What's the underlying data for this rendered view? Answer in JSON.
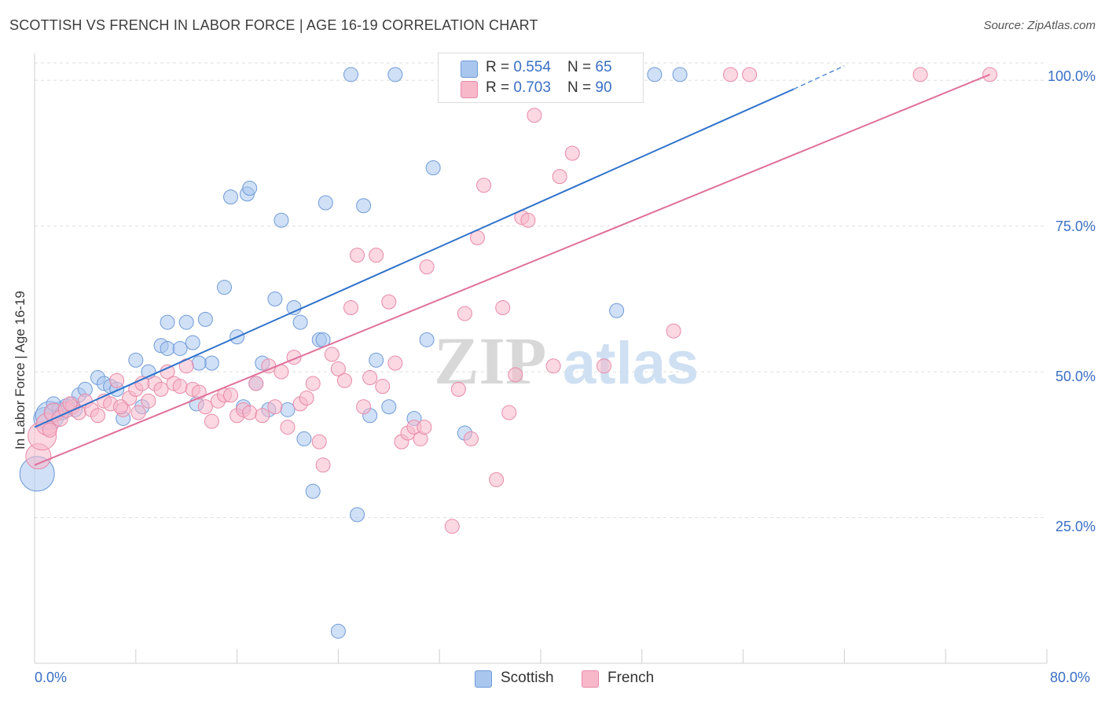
{
  "header": {
    "title": "SCOTTISH VS FRENCH IN LABOR FORCE | AGE 16-19 CORRELATION CHART",
    "source": "Source: ZipAtlas.com"
  },
  "legend": {
    "rows": [
      {
        "r_label": "R = ",
        "r_value": "0.554",
        "n_label": "N = ",
        "n_value": "65"
      },
      {
        "r_label": "R = ",
        "r_value": "0.703",
        "n_label": "N = ",
        "n_value": "90"
      }
    ],
    "items": [
      {
        "label": "Scottish"
      },
      {
        "label": "French"
      }
    ]
  },
  "colors": {
    "scottish_fill": "#a9c6ef",
    "scottish_stroke": "#6f9bd8",
    "scottish_line": "#2f72cc",
    "french_fill": "#f7b8ca",
    "french_stroke": "#e88aa8",
    "french_line": "#e0709a",
    "tick_text": "#3a6fc4",
    "grid": "#dddddd"
  },
  "chart_data": {
    "type": "scatter",
    "title": "SCOTTISH VS FRENCH IN LABOR FORCE | AGE 16-19 CORRELATION CHART",
    "xlabel": "",
    "ylabel": "In Labor Force | Age 16-19",
    "xlim": [
      0,
      80
    ],
    "ylim": [
      0,
      103
    ],
    "x_tick_labels": [
      "0.0%",
      "80.0%"
    ],
    "y_tick_labels": [
      "25.0%",
      "50.0%",
      "75.0%",
      "100.0%"
    ],
    "y_ticks": [
      25,
      50,
      75,
      100
    ],
    "watermark": {
      "part1": "ZIP",
      "part2": "atlas"
    },
    "series": [
      {
        "name": "Scottish",
        "r": 0.554,
        "n": 65,
        "trend": {
          "x0": 0,
          "y0": 40.5,
          "x1": 60,
          "y1": 98.5,
          "dash_to_x": 64,
          "dash_to_y": 102.5
        },
        "points": [
          [
            0.2,
            32.5,
            22
          ],
          [
            0.8,
            42,
            14
          ],
          [
            1.2,
            42.5,
            18
          ],
          [
            1.5,
            43,
            11
          ],
          [
            2.0,
            43.5,
            10
          ],
          [
            2.5,
            44,
            10
          ],
          [
            3.0,
            44.5,
            9
          ],
          [
            3.5,
            46,
            9
          ],
          [
            4.0,
            47,
            9
          ],
          [
            5.0,
            49,
            9
          ],
          [
            5.5,
            48,
            9
          ],
          [
            6.0,
            47.5,
            9
          ],
          [
            6.5,
            47,
            9
          ],
          [
            7.0,
            42,
            9
          ],
          [
            8.0,
            52,
            9
          ],
          [
            8.5,
            44,
            9
          ],
          [
            9.0,
            50,
            9
          ],
          [
            10.0,
            54.5,
            9
          ],
          [
            10.5,
            54,
            9
          ],
          [
            11.5,
            54,
            9
          ],
          [
            10.5,
            58.5,
            9
          ],
          [
            12.0,
            58.5,
            9
          ],
          [
            13.5,
            59,
            9
          ],
          [
            12.5,
            55,
            9
          ],
          [
            14.0,
            51.5,
            9
          ],
          [
            13.0,
            51.5,
            9
          ],
          [
            12.8,
            44.5,
            9
          ],
          [
            15.0,
            64.5,
            9
          ],
          [
            15.5,
            80,
            9
          ],
          [
            16.0,
            56,
            9
          ],
          [
            16.5,
            44,
            9
          ],
          [
            16.8,
            80.5,
            9
          ],
          [
            17.0,
            81.5,
            9
          ],
          [
            17.5,
            48,
            9
          ],
          [
            18.0,
            51.5,
            9
          ],
          [
            18.5,
            43.5,
            9
          ],
          [
            19.0,
            62.5,
            9
          ],
          [
            19.5,
            76,
            9
          ],
          [
            20.0,
            43.5,
            9
          ],
          [
            20.5,
            61,
            9
          ],
          [
            21.0,
            58.5,
            9
          ],
          [
            21.3,
            38.5,
            9
          ],
          [
            22.0,
            29.5,
            9
          ],
          [
            22.5,
            55.5,
            9
          ],
          [
            22.8,
            55.5,
            9
          ],
          [
            23.0,
            79,
            9
          ],
          [
            24.0,
            5.5,
            9
          ],
          [
            25.0,
            101,
            9
          ],
          [
            25.5,
            25.5,
            9
          ],
          [
            26.0,
            78.5,
            9
          ],
          [
            26.5,
            42.5,
            9
          ],
          [
            27.0,
            52,
            9
          ],
          [
            28.0,
            44,
            9
          ],
          [
            28.5,
            101,
            9
          ],
          [
            30.0,
            42,
            9
          ],
          [
            31.0,
            55.5,
            9
          ],
          [
            31.5,
            85,
            9
          ],
          [
            34.0,
            39.5,
            9
          ],
          [
            37.0,
            101,
            9
          ],
          [
            46.0,
            60.5,
            9
          ],
          [
            49.0,
            101,
            9
          ],
          [
            51.0,
            101,
            9
          ],
          [
            1.5,
            44.5,
            9
          ],
          [
            2.2,
            43,
            9
          ],
          [
            3.2,
            43.5,
            9
          ]
        ]
      },
      {
        "name": "French",
        "r": 0.703,
        "n": 90,
        "trend": {
          "x0": 0,
          "y0": 34,
          "x1": 75.5,
          "y1": 101
        },
        "points": [
          [
            0.3,
            35.5,
            16
          ],
          [
            0.6,
            39,
            18
          ],
          [
            1.0,
            41,
            14
          ],
          [
            1.5,
            43,
            12
          ],
          [
            2.0,
            42,
            10
          ],
          [
            2.5,
            43.5,
            10
          ],
          [
            3.0,
            44,
            9
          ],
          [
            3.5,
            43,
            9
          ],
          [
            4.0,
            45,
            9
          ],
          [
            4.5,
            43.5,
            9
          ],
          [
            5.0,
            42.5,
            9
          ],
          [
            5.5,
            45,
            9
          ],
          [
            6.0,
            44.5,
            9
          ],
          [
            6.5,
            48.5,
            9
          ],
          [
            7.0,
            43.5,
            9
          ],
          [
            7.5,
            45.5,
            9
          ],
          [
            8.0,
            47,
            9
          ],
          [
            8.5,
            48,
            9
          ],
          [
            9.0,
            45,
            9
          ],
          [
            9.5,
            48,
            9
          ],
          [
            10.0,
            47,
            9
          ],
          [
            10.5,
            50,
            9
          ],
          [
            11.0,
            48,
            9
          ],
          [
            11.5,
            47.5,
            9
          ],
          [
            12.0,
            51,
            9
          ],
          [
            12.5,
            47,
            9
          ],
          [
            13.0,
            46.5,
            9
          ],
          [
            13.5,
            44,
            9
          ],
          [
            14.0,
            41.5,
            9
          ],
          [
            14.5,
            45,
            9
          ],
          [
            15.0,
            46,
            9
          ],
          [
            15.5,
            46,
            9
          ],
          [
            16.0,
            42.5,
            9
          ],
          [
            16.5,
            43.5,
            9
          ],
          [
            17.0,
            43,
            9
          ],
          [
            17.5,
            48,
            9
          ],
          [
            18.0,
            42.5,
            9
          ],
          [
            18.5,
            51,
            9
          ],
          [
            19.0,
            44,
            9
          ],
          [
            19.5,
            50,
            9
          ],
          [
            20.0,
            40.5,
            9
          ],
          [
            20.5,
            52.5,
            9
          ],
          [
            21.0,
            44.5,
            9
          ],
          [
            21.5,
            45.5,
            9
          ],
          [
            22.0,
            48,
            9
          ],
          [
            22.5,
            38,
            9
          ],
          [
            22.8,
            34,
            9
          ],
          [
            23.5,
            53,
            9
          ],
          [
            24.0,
            50.5,
            9
          ],
          [
            24.5,
            48.5,
            9
          ],
          [
            25.0,
            61,
            9
          ],
          [
            25.5,
            70,
            9
          ],
          [
            26.0,
            44,
            9
          ],
          [
            26.5,
            49,
            9
          ],
          [
            27.0,
            70,
            9
          ],
          [
            27.5,
            47.5,
            9
          ],
          [
            28.0,
            62,
            9
          ],
          [
            28.5,
            51.5,
            9
          ],
          [
            29.0,
            38,
            9
          ],
          [
            29.5,
            39.5,
            9
          ],
          [
            30.0,
            40.5,
            9
          ],
          [
            30.5,
            38.5,
            9
          ],
          [
            30.8,
            40.5,
            9
          ],
          [
            31.0,
            68,
            9
          ],
          [
            33.0,
            23.5,
            9
          ],
          [
            33.5,
            47,
            9
          ],
          [
            34.0,
            60,
            9
          ],
          [
            34.5,
            38.5,
            9
          ],
          [
            35.0,
            73,
            9
          ],
          [
            35.5,
            82,
            9
          ],
          [
            36.5,
            31.5,
            9
          ],
          [
            37.0,
            61,
            9
          ],
          [
            37.5,
            43,
            9
          ],
          [
            38.0,
            49.5,
            9
          ],
          [
            38.5,
            76.5,
            9
          ],
          [
            39.0,
            76,
            9
          ],
          [
            39.5,
            94,
            9
          ],
          [
            41.0,
            51,
            9
          ],
          [
            41.5,
            83.5,
            9
          ],
          [
            42.5,
            87.5,
            9
          ],
          [
            45.0,
            51,
            9
          ],
          [
            50.5,
            57,
            9
          ],
          [
            55.0,
            101,
            9
          ],
          [
            56.5,
            101,
            9
          ],
          [
            70.0,
            101,
            9
          ],
          [
            75.5,
            101,
            9
          ],
          [
            1.2,
            40,
            9
          ],
          [
            2.8,
            44.5,
            9
          ],
          [
            6.8,
            44,
            9
          ],
          [
            8.2,
            43,
            9
          ]
        ]
      }
    ]
  }
}
